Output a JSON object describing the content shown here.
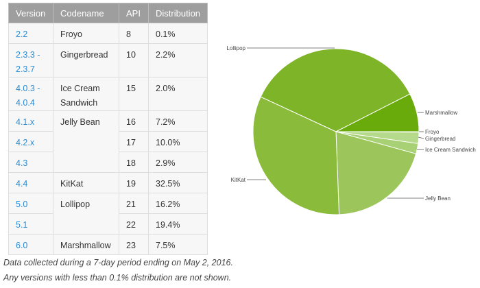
{
  "table": {
    "headers": [
      "Version",
      "Codename",
      "API",
      "Distribution"
    ],
    "rows": [
      {
        "version": "2.2",
        "codename": "Froyo",
        "span": 1,
        "api": "8",
        "dist": "0.1%"
      },
      {
        "version": "2.3.3 - 2.3.7",
        "codename": "Gingerbread",
        "span": 1,
        "api": "10",
        "dist": "2.2%"
      },
      {
        "version": "4.0.3 - 4.0.4",
        "codename": "Ice Cream Sandwich",
        "span": 1,
        "api": "15",
        "dist": "2.0%"
      },
      {
        "version": "4.1.x",
        "codename": "Jelly Bean",
        "span": 3,
        "api": "16",
        "dist": "7.2%"
      },
      {
        "version": "4.2.x",
        "codename": null,
        "api": "17",
        "dist": "10.0%"
      },
      {
        "version": "4.3",
        "codename": null,
        "api": "18",
        "dist": "2.9%"
      },
      {
        "version": "4.4",
        "codename": "KitKat",
        "span": 1,
        "api": "19",
        "dist": "32.5%"
      },
      {
        "version": "5.0",
        "codename": "Lollipop",
        "span": 2,
        "api": "21",
        "dist": "16.2%"
      },
      {
        "version": "5.1",
        "codename": null,
        "api": "22",
        "dist": "19.4%"
      },
      {
        "version": "6.0",
        "codename": "Marshmallow",
        "span": 1,
        "api": "23",
        "dist": "7.5%"
      }
    ]
  },
  "notes": [
    "Data collected during a 7-day period ending on May 2, 2016.",
    "Any versions with less than 0.1% distribution are not shown."
  ],
  "chart_data": {
    "type": "pie",
    "categories": [
      "Froyo",
      "Gingerbread",
      "Ice Cream Sandwich",
      "Jelly Bean",
      "KitKat",
      "Lollipop",
      "Marshmallow"
    ],
    "values": [
      0.1,
      2.2,
      2.0,
      20.1,
      32.5,
      35.6,
      7.5
    ],
    "colors": [
      "#b6da8c",
      "#b6da8c",
      "#a8d075",
      "#9cc65b",
      "#8bbb3b",
      "#7db428",
      "#6aab0c"
    ],
    "start": "3 o'clock, clockwise"
  }
}
